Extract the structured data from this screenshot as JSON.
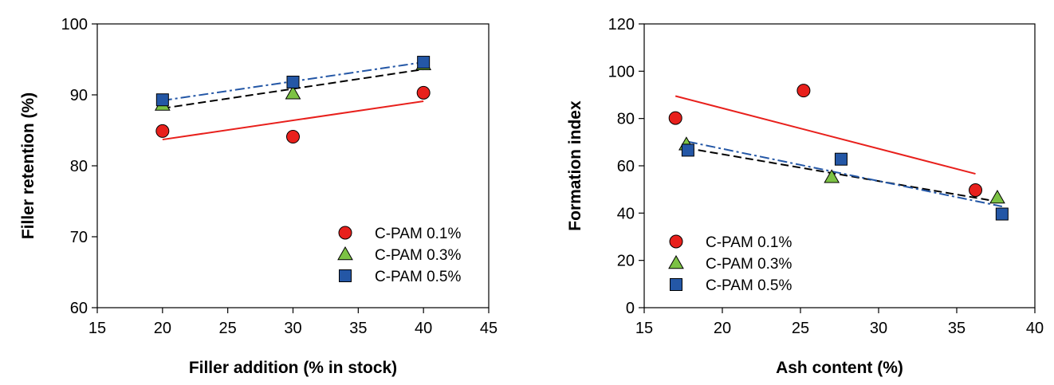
{
  "chart_data": [
    {
      "type": "scatter",
      "title": "",
      "xlabel": "Filler addition (% in stock)",
      "ylabel": "Filler retention (%)",
      "xlim": [
        15,
        45
      ],
      "ylim": [
        60,
        100
      ],
      "xticks": [
        15,
        20,
        25,
        30,
        35,
        40,
        45
      ],
      "yticks": [
        60,
        70,
        80,
        90,
        100
      ],
      "legend_position": "bottom-right",
      "series": [
        {
          "name": "C-PAM 0.1%",
          "marker": "circle",
          "color": "#e8201c",
          "line_color": "#e8201c",
          "line_style": "solid",
          "x": [
            20,
            30,
            40
          ],
          "y": [
            84.9,
            84.1,
            90.3
          ],
          "trend": [
            [
              20,
              83.7
            ],
            [
              40,
              89.1
            ]
          ]
        },
        {
          "name": "C-PAM 0.3%",
          "marker": "triangle",
          "color": "#7cc244",
          "line_color": "#000000",
          "line_style": "dashed",
          "x": [
            20,
            30,
            40
          ],
          "y": [
            88.6,
            90.2,
            94.3
          ],
          "trend": [
            [
              20,
              88.1
            ],
            [
              40,
              93.6
            ]
          ]
        },
        {
          "name": "C-PAM 0.5%",
          "marker": "square",
          "color": "#2457a6",
          "line_color": "#2457a6",
          "line_style": "dashdot",
          "x": [
            20,
            30,
            40
          ],
          "y": [
            89.3,
            91.8,
            94.6
          ],
          "trend": [
            [
              20,
              89.2
            ],
            [
              40,
              94.6
            ]
          ]
        }
      ]
    },
    {
      "type": "scatter",
      "title": "",
      "xlabel": "Ash content (%)",
      "ylabel": "Formation index",
      "xlim": [
        15,
        40
      ],
      "ylim": [
        0,
        120
      ],
      "xticks": [
        15,
        20,
        25,
        30,
        35,
        40
      ],
      "yticks": [
        0,
        20,
        40,
        60,
        80,
        100,
        120
      ],
      "legend_position": "bottom-left",
      "series": [
        {
          "name": "C-PAM 0.1%",
          "marker": "circle",
          "color": "#e8201c",
          "line_color": "#e8201c",
          "line_style": "solid",
          "x": [
            17.0,
            25.2,
            36.2
          ],
          "y": [
            80.2,
            91.8,
            49.7
          ],
          "trend": [
            [
              17.0,
              89.5
            ],
            [
              36.2,
              56.6
            ]
          ]
        },
        {
          "name": "C-PAM 0.3%",
          "marker": "triangle",
          "color": "#7cc244",
          "line_color": "#000000",
          "line_style": "dashed",
          "x": [
            17.7,
            27.0,
            37.6
          ],
          "y": [
            69.0,
            55.2,
            46.5
          ],
          "trend": [
            [
              17.7,
              67.5
            ],
            [
              37.6,
              44.9
            ]
          ]
        },
        {
          "name": "C-PAM 0.5%",
          "marker": "square",
          "color": "#2457a6",
          "line_color": "#2457a6",
          "line_style": "dashdot",
          "x": [
            17.8,
            27.6,
            37.9
          ],
          "y": [
            66.6,
            62.8,
            39.6
          ],
          "trend": [
            [
              17.8,
              70.2
            ],
            [
              37.9,
              42.8
            ]
          ]
        }
      ]
    }
  ]
}
